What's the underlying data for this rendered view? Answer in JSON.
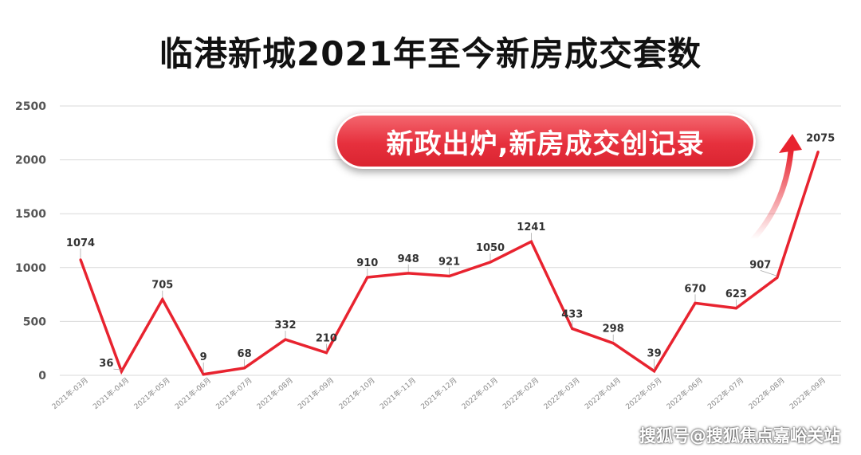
{
  "title": "临港新城2021年至今新房成交套数",
  "callout": "新政出炉,新房成交创记录",
  "watermark": "搜狐号@搜狐焦点嘉峪关站",
  "colors": {
    "line": "#e8232f",
    "grid": "#d9d9d9",
    "axis_text": "#555555",
    "label_text": "#333333"
  },
  "chart_data": {
    "type": "line",
    "title": "临港新城2021年至今新房成交套数",
    "xlabel": "",
    "ylabel": "",
    "ylim": [
      0,
      2500
    ],
    "yticks": [
      0,
      500,
      1000,
      1500,
      2000,
      2500
    ],
    "grid": true,
    "categories": [
      "2021年-03月",
      "2021年-04月",
      "2021年-05月",
      "2021年-06月",
      "2021年-07月",
      "2021年-08月",
      "2021年-09月",
      "2021年-10月",
      "2021年-11月",
      "2021年-12月",
      "2022年-01月",
      "2022年-02月",
      "2022年-03月",
      "2022年-04月",
      "2022年-05月",
      "2022年-06月",
      "2022年-07月",
      "2022年-08月",
      "2022年-09月"
    ],
    "values": [
      1074,
      36,
      705,
      9,
      68,
      332,
      210,
      910,
      948,
      921,
      1050,
      1241,
      433,
      298,
      39,
      670,
      623,
      907,
      2075
    ]
  }
}
